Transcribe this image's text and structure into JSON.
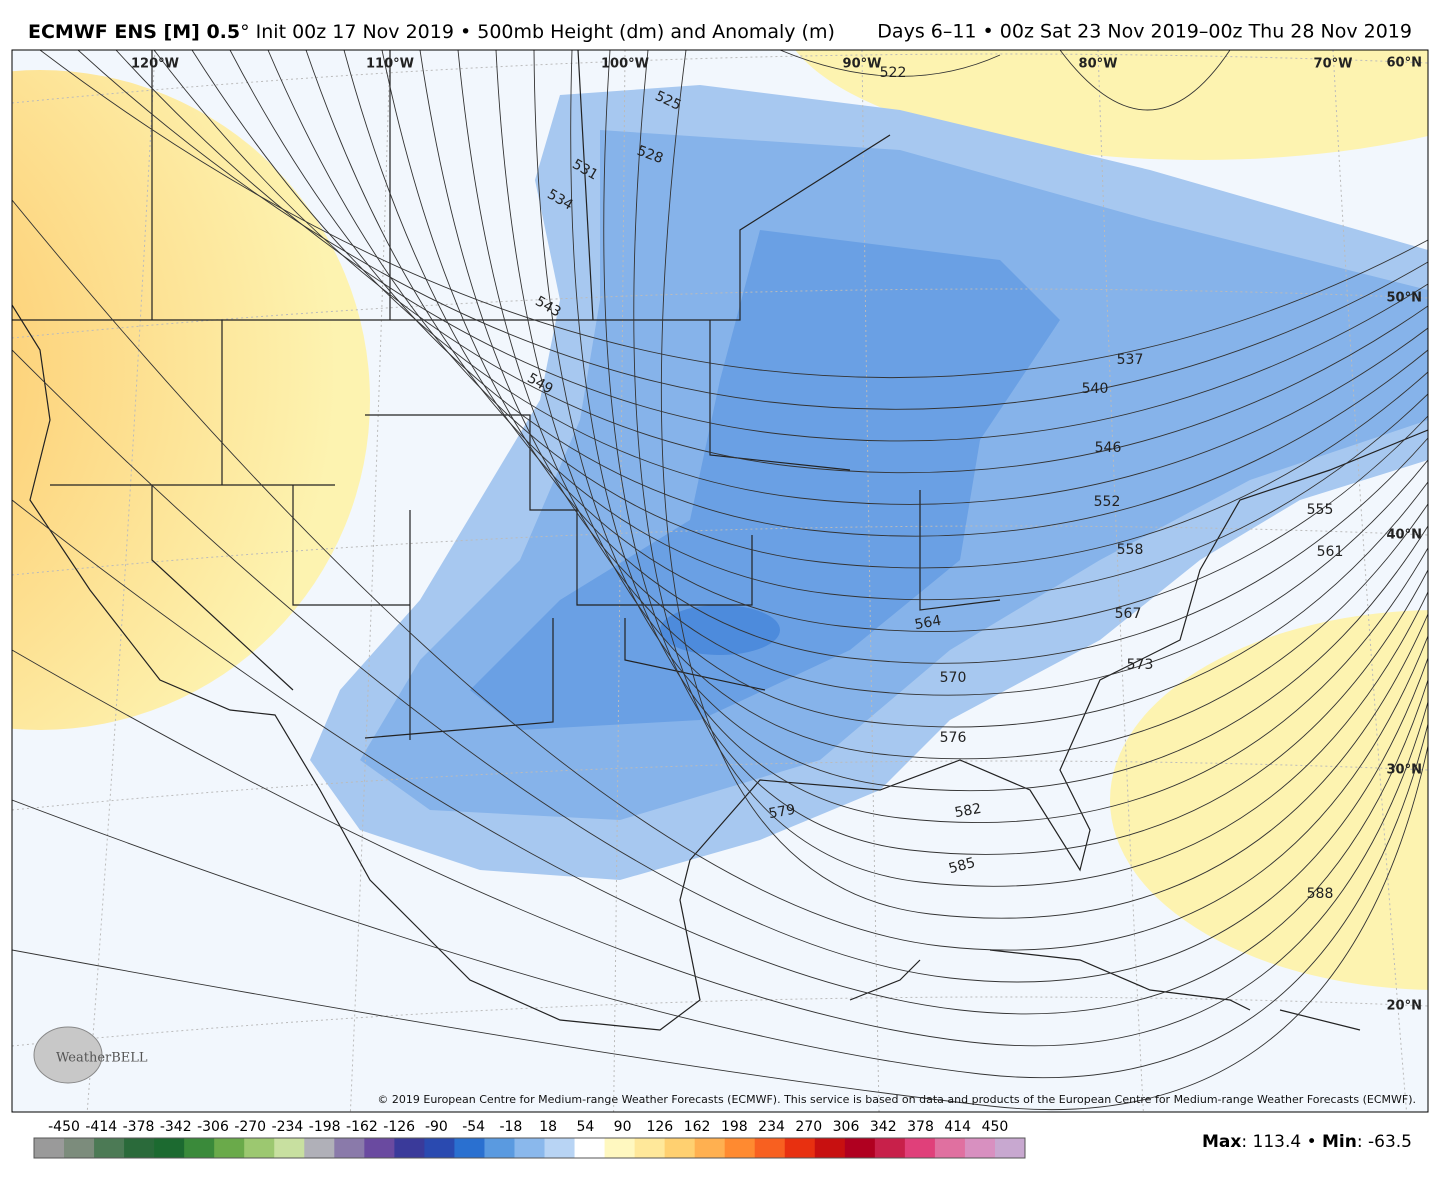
{
  "header": {
    "title_bold": "ECMWF ENS [M] 0.5",
    "title_rest": "° Init 00z 17 Nov 2019 • 500mb Height (dm) and Anomaly (m)",
    "valid": "Days 6–11 • 00z Sat 23 Nov 2019–00z Thu 28 Nov 2019"
  },
  "map": {
    "longitudes": [
      "120°W",
      "110°W",
      "100°W",
      "90°W",
      "80°W",
      "70°W"
    ],
    "latitudes": [
      "60°N",
      "50°N",
      "40°N",
      "30°N",
      "20°N"
    ],
    "contour_labels": [
      "522",
      "525",
      "528",
      "531",
      "534",
      "543",
      "549",
      "537",
      "540",
      "546",
      "552",
      "555",
      "558",
      "561",
      "564",
      "567",
      "570",
      "573",
      "576",
      "579",
      "582",
      "585",
      "588"
    ],
    "copyright": "© 2019 European Centre for Medium-range Weather Forecasts (ECMWF). This service is based on data and products of the European Centre for Medium-range Weather Forecasts (ECMWF).",
    "logo": "WeatherBELL"
  },
  "colorbar": {
    "ticks": [
      "-450",
      "-414",
      "-378",
      "-342",
      "-306",
      "-270",
      "-234",
      "-198",
      "-162",
      "-126",
      "-90",
      "-54",
      "-18",
      "18",
      "54",
      "90",
      "126",
      "162",
      "198",
      "234",
      "270",
      "306",
      "342",
      "378",
      "414",
      "450"
    ],
    "colors": [
      "#9a9a9a",
      "#7c8c7c",
      "#4c7a55",
      "#2a6a3a",
      "#1c6a30",
      "#3a8a3a",
      "#6aaa4a",
      "#9cc870",
      "#c8e0a0",
      "#b0b0b8",
      "#8a7aaa",
      "#6a4aa0",
      "#3a3a9a",
      "#2a4ab0",
      "#2a70d0",
      "#5a9ae0",
      "#8ab8ec",
      "#b8d4f4",
      "#ffffff",
      "#fff8c0",
      "#ffe89a",
      "#ffd070",
      "#ffb050",
      "#ff8a30",
      "#f86020",
      "#e83010",
      "#c81010",
      "#b00020",
      "#c8204a",
      "#e0407a",
      "#e070a0",
      "#d890c0",
      "#c8a8d0"
    ]
  },
  "stats": [
    {
      "label": "Max",
      "text": ": 113.4 •"
    },
    {
      "label": "Min",
      "text": ": -63.5"
    }
  ]
}
